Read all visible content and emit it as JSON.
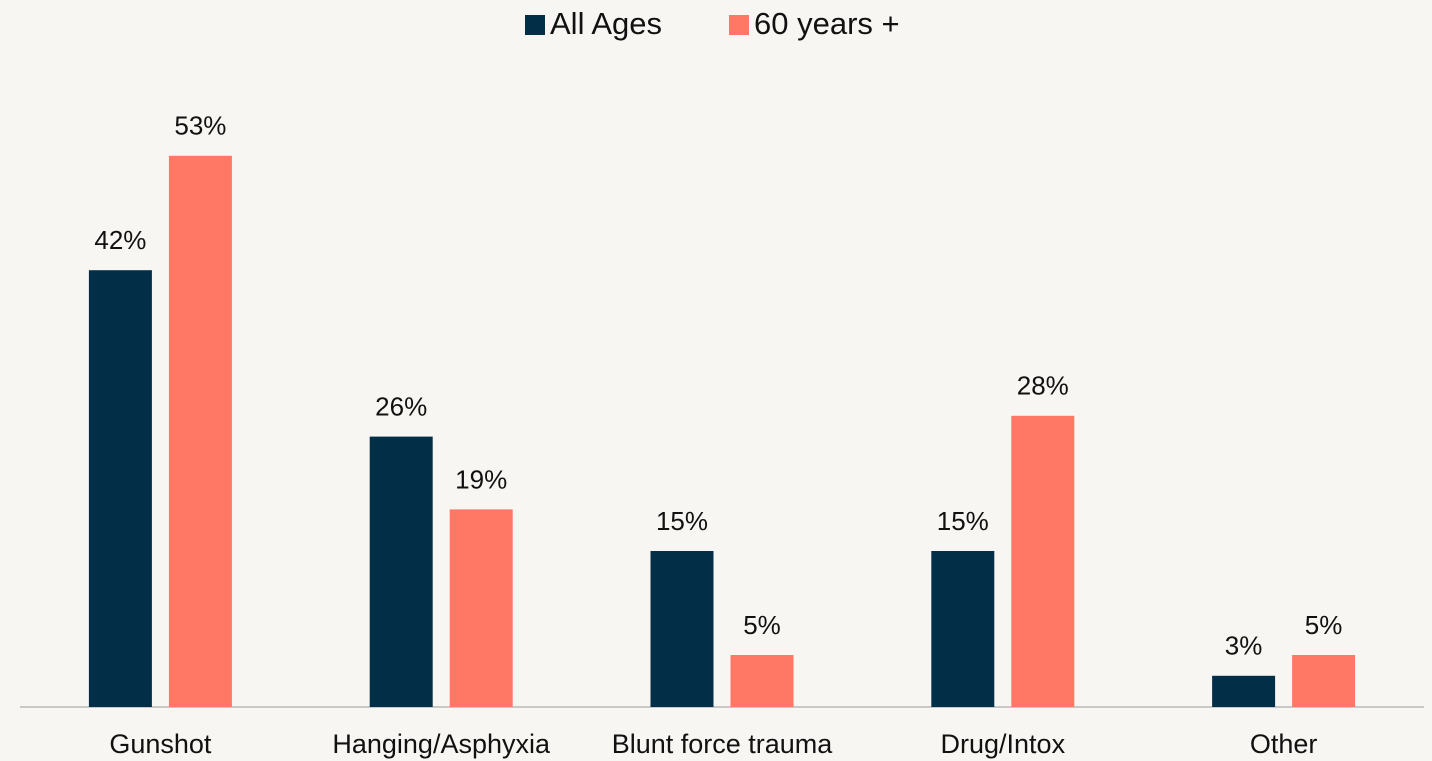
{
  "chart_data": {
    "type": "bar",
    "categories": [
      "Gunshot",
      "Hanging/Asphyxia",
      "Blunt force trauma",
      "Drug/Intox",
      "Other"
    ],
    "series": [
      {
        "name": "All Ages",
        "color": "#022e48",
        "values": [
          42,
          26,
          15,
          15,
          3
        ],
        "value_labels": [
          "42%",
          "26%",
          "15%",
          "15%",
          "3%"
        ]
      },
      {
        "name": "60 years +",
        "color": "#ff7866",
        "values": [
          53,
          19,
          5,
          28,
          5
        ],
        "value_labels": [
          "53%",
          "19%",
          "5%",
          "28%",
          "5%"
        ]
      }
    ],
    "legend": "top"
  }
}
